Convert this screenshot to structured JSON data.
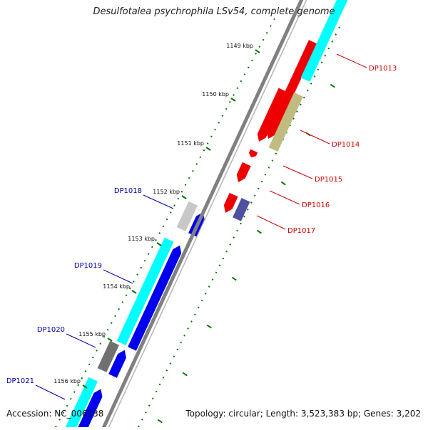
{
  "title": "Desulfotalea psychrophila LSv54, complete genome",
  "accession": "Accession: NC_006138",
  "summary": "Topology: circular; Length: 3,523,383 bp; Genes: 3,202",
  "colors": {
    "forward_gene": "#0000ee",
    "reverse_gene": "#ee0000",
    "forward_label": "#0000aa",
    "reverse_label": "#cc0000",
    "cyan_feature": "#00ffff",
    "olive_feature": "#c0bb80",
    "slate_feature": "#5050a0",
    "gray_feature": "#707070",
    "light_gray_feature": "#c8c8c8",
    "backbone": "#808080",
    "tick_green": "#007700"
  },
  "ticks": [
    {
      "label": "1149 kbp"
    },
    {
      "label": "1150 kbp"
    },
    {
      "label": "1151 kbp"
    },
    {
      "label": "1152 kbp"
    },
    {
      "label": "1153 kbp"
    },
    {
      "label": "1154 kbp"
    },
    {
      "label": "1155 kbp"
    },
    {
      "label": "1156 kbp"
    }
  ],
  "genes": [
    {
      "name": "DP1013",
      "strand": "reverse"
    },
    {
      "name": "DP1014",
      "strand": "reverse"
    },
    {
      "name": "DP1015",
      "strand": "reverse"
    },
    {
      "name": "DP1016",
      "strand": "reverse"
    },
    {
      "name": "DP1017",
      "strand": "reverse"
    },
    {
      "name": "DP1018",
      "strand": "forward"
    },
    {
      "name": "DP1019",
      "strand": "forward"
    },
    {
      "name": "DP1020",
      "strand": "forward"
    },
    {
      "name": "DP1021",
      "strand": "forward"
    }
  ]
}
